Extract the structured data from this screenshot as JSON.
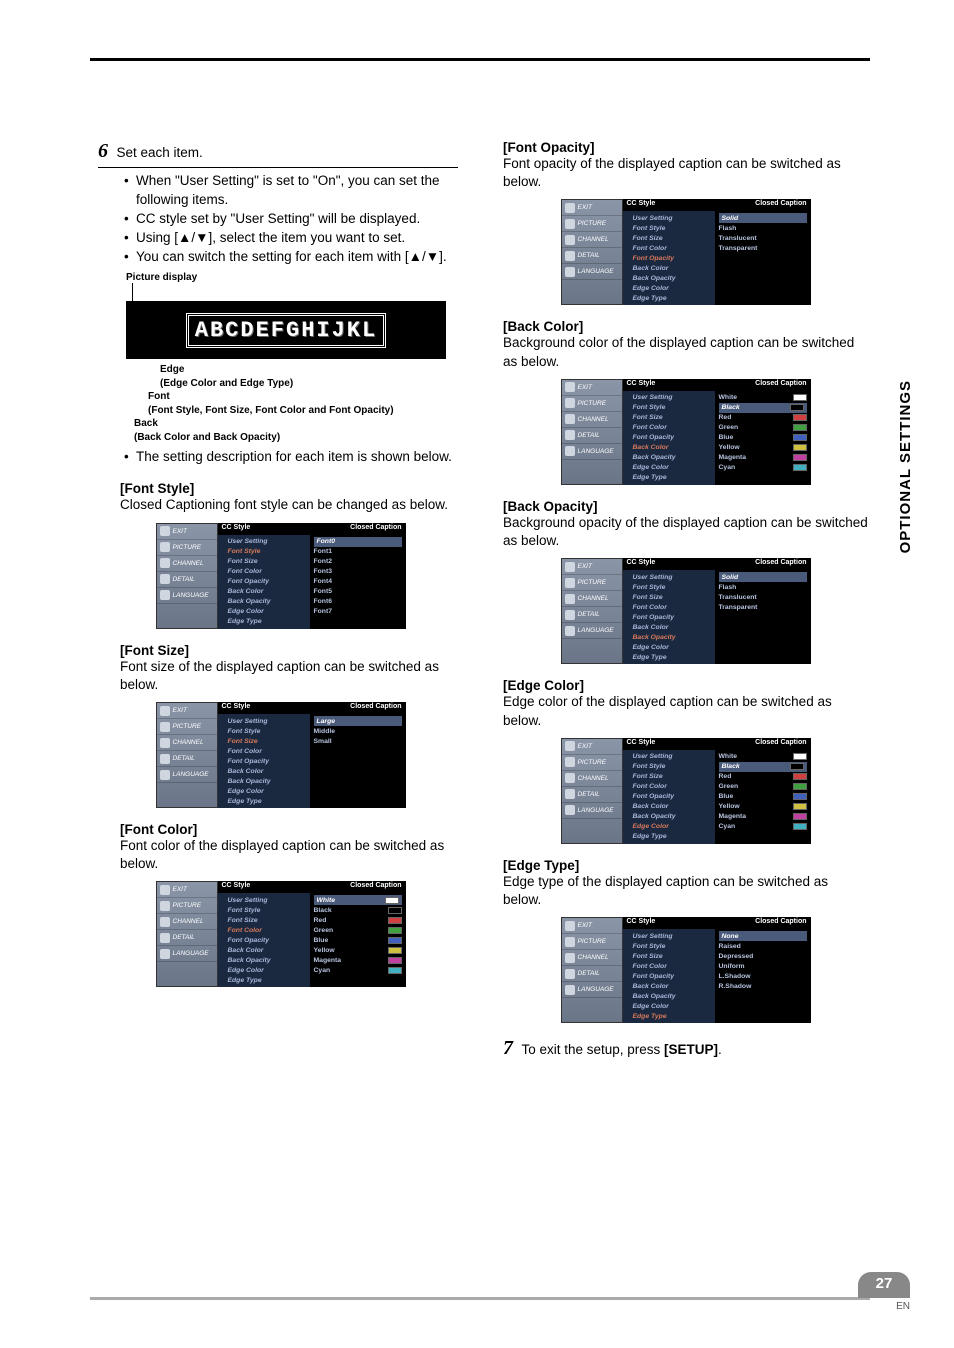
{
  "top_rule_color": "#000000",
  "side_tab": "OPTIONAL SETTINGS",
  "page_number": "27",
  "page_suffix": "EN",
  "step6_num": "6",
  "step6_text": "Set each item.",
  "bullets6": [
    "When \"User Setting\" is set to \"On\", you can set the following items.",
    "CC style set by \"User Setting\" will be displayed.",
    "Using [▲/▼], select the item you want to set.",
    "You can switch the setting for each item with [▲/▼]."
  ],
  "picture_display_label": "Picture display",
  "picture_sample_text": "ABCDEFGHIJKL",
  "callouts": {
    "edge_title": "Edge",
    "edge_sub": "(Edge Color and Edge Type)",
    "font_title": "Font",
    "font_sub": "(Font Style, Font Size, Font Color and Font Opacity)",
    "back_title": "Back",
    "back_sub": "(Back Color and Back Opacity)"
  },
  "desc_bullet": "The setting description for each item is shown below.",
  "sidebar_items": [
    "EXIT",
    "PICTURE",
    "CHANNEL",
    "DETAIL",
    "LANGUAGE"
  ],
  "menu_header_left": "CC Style",
  "menu_header_right": "Closed Caption",
  "menu_labels": [
    "User Setting",
    "Font Style",
    "Font Size",
    "Font Color",
    "Font Opacity",
    "Back Color",
    "Back Opacity",
    "Edge Color",
    "Edge Type"
  ],
  "sections": {
    "font_style": {
      "title": "[Font Style]",
      "body": "Closed Captioning font style can be changed as below.",
      "highlight": "Font Style",
      "values": [
        {
          "label": "Font0",
          "sel": true
        },
        {
          "label": "Font1"
        },
        {
          "label": "Font2"
        },
        {
          "label": "Font3"
        },
        {
          "label": "Font4"
        },
        {
          "label": "Font5"
        },
        {
          "label": "Font6"
        },
        {
          "label": "Font7"
        }
      ]
    },
    "font_size": {
      "title": "[Font Size]",
      "body": "Font size of the displayed caption can be switched as below.",
      "highlight": "Font Size",
      "values": [
        {
          "label": "Large",
          "sel": true
        },
        {
          "label": "Middle"
        },
        {
          "label": "Small"
        }
      ]
    },
    "font_color": {
      "title": "[Font Color]",
      "body": "Font color of the displayed caption can be switched as below.",
      "highlight": "Font Color",
      "values": [
        {
          "label": "White",
          "sel": true,
          "swatch": "#ffffff"
        },
        {
          "label": "Black",
          "swatch": "#000000"
        },
        {
          "label": "Red",
          "swatch": "#d04040"
        },
        {
          "label": "Green",
          "swatch": "#40a040"
        },
        {
          "label": "Blue",
          "swatch": "#4060c0"
        },
        {
          "label": "Yellow",
          "swatch": "#d0c040"
        },
        {
          "label": "Magenta",
          "swatch": "#c040a0"
        },
        {
          "label": "Cyan",
          "swatch": "#40b0c0"
        }
      ]
    },
    "font_opacity": {
      "title": "[Font Opacity]",
      "body": "Font opacity of the displayed caption can be switched as below.",
      "highlight": "Font Opacity",
      "values": [
        {
          "label": "Solid",
          "sel": true
        },
        {
          "label": "Flash"
        },
        {
          "label": "Translucent"
        },
        {
          "label": "Transparent"
        }
      ]
    },
    "back_color": {
      "title": "[Back Color]",
      "body": "Background color of the displayed caption can be switched as below.",
      "highlight": "Back Color",
      "values": [
        {
          "label": "White",
          "swatch": "#ffffff"
        },
        {
          "label": "Black",
          "sel": true,
          "swatch": "#000000"
        },
        {
          "label": "Red",
          "swatch": "#d04040"
        },
        {
          "label": "Green",
          "swatch": "#40a040"
        },
        {
          "label": "Blue",
          "swatch": "#4060c0"
        },
        {
          "label": "Yellow",
          "swatch": "#d0c040"
        },
        {
          "label": "Magenta",
          "swatch": "#c040a0"
        },
        {
          "label": "Cyan",
          "swatch": "#40b0c0"
        }
      ]
    },
    "back_opacity": {
      "title": "[Back Opacity]",
      "body": "Background opacity of the displayed caption can be switched as below.",
      "highlight": "Back Opacity",
      "values": [
        {
          "label": "Solid",
          "sel": true
        },
        {
          "label": "Flash"
        },
        {
          "label": "Translucent"
        },
        {
          "label": "Transparent"
        }
      ]
    },
    "edge_color": {
      "title": "[Edge Color]",
      "body": "Edge color of the displayed caption can be switched as below.",
      "highlight": "Edge Color",
      "values": [
        {
          "label": "White",
          "swatch": "#ffffff"
        },
        {
          "label": "Black",
          "sel": true,
          "swatch": "#000000"
        },
        {
          "label": "Red",
          "swatch": "#d04040"
        },
        {
          "label": "Green",
          "swatch": "#40a040"
        },
        {
          "label": "Blue",
          "swatch": "#4060c0"
        },
        {
          "label": "Yellow",
          "swatch": "#d0c040"
        },
        {
          "label": "Magenta",
          "swatch": "#c040a0"
        },
        {
          "label": "Cyan",
          "swatch": "#40b0c0"
        }
      ]
    },
    "edge_type": {
      "title": "[Edge Type]",
      "body": "Edge type of the displayed caption can be switched as below.",
      "highlight": "Edge Type",
      "values": [
        {
          "label": "None",
          "sel": true
        },
        {
          "label": "Raised"
        },
        {
          "label": "Depressed"
        },
        {
          "label": "Uniform"
        },
        {
          "label": "L.Shadow"
        },
        {
          "label": "R.Shadow"
        }
      ]
    }
  },
  "step7_num": "7",
  "step7_text_a": "To exit the setup, press ",
  "step7_text_b": "[SETUP]",
  "step7_text_c": "."
}
